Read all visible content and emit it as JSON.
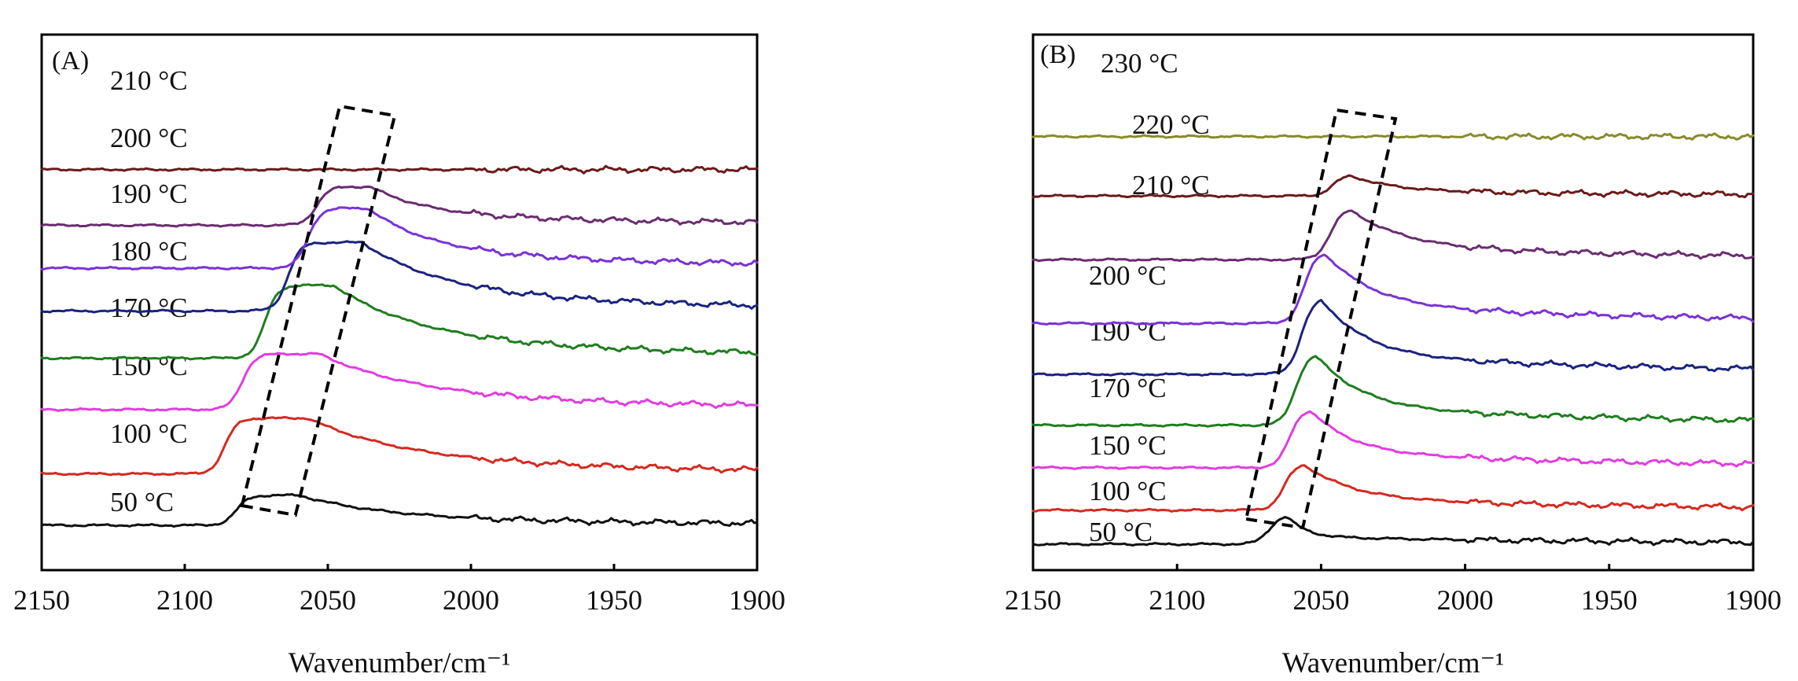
{
  "chart_data": [
    {
      "type": "line",
      "panel": "(A)",
      "xlabel": "Wavenumber/cm⁻¹",
      "ylabel": "",
      "xlim": [
        2150,
        1900
      ],
      "xticks": [
        "2150",
        "2100",
        "2050",
        "2000",
        "1950",
        "1900"
      ],
      "highlight_box_x": [
        2080,
        2028
      ],
      "series": [
        {
          "name": "50 °C",
          "color": "#111111",
          "offset": 0,
          "amp": 7,
          "peak": 2060,
          "width": 30,
          "edge": 2082
        },
        {
          "name": "100 °C",
          "color": "#d42a20",
          "offset": 12,
          "amp": 13,
          "peak": 2057,
          "width": 34,
          "edge": 2086
        },
        {
          "name": "150 °C",
          "color": "#e23ce0",
          "offset": 27,
          "amp": 13,
          "peak": 2053,
          "width": 34,
          "edge": 2080
        },
        {
          "name": "170 °C",
          "color": "#1f7d1f",
          "offset": 39,
          "amp": 17,
          "peak": 2048,
          "width": 30,
          "edge": 2072
        },
        {
          "name": "180 °C",
          "color": "#1a237e",
          "offset": 50,
          "amp": 16,
          "peak": 2038,
          "width": 28,
          "edge": 2064
        },
        {
          "name": "190 °C",
          "color": "#7a32d6",
          "offset": 60,
          "amp": 14,
          "peak": 2036,
          "width": 22,
          "edge": 2057
        },
        {
          "name": "200 °C",
          "color": "#6a2c70",
          "offset": 70,
          "amp": 9,
          "peak": 2035,
          "width": 20,
          "edge": 2054
        },
        {
          "name": "210 °C",
          "color": "#6b1a1a",
          "offset": 83,
          "amp": 0,
          "peak": 2045,
          "width": 40,
          "edge": 2070
        }
      ]
    },
    {
      "type": "line",
      "panel": "(B)",
      "xlabel": "Wavenumber/cm⁻¹",
      "ylabel": "",
      "xlim": [
        2150,
        1900
      ],
      "xticks": [
        "2150",
        "2100",
        "2050",
        "2000",
        "1950",
        "1900"
      ],
      "highlight_box_x": [
        2076,
        2025
      ],
      "series": [
        {
          "name": "50 °C",
          "color": "#111111",
          "offset": 0,
          "amp": 7,
          "peak": 2062,
          "width": 6,
          "edge": 2068
        },
        {
          "name": "100 °C",
          "color": "#d42a20",
          "offset": 8,
          "amp": 11,
          "peak": 2056,
          "width": 16,
          "edge": 2063
        },
        {
          "name": "150 °C",
          "color": "#e23ce0",
          "offset": 18,
          "amp": 14,
          "peak": 2054,
          "width": 14,
          "edge": 2061
        },
        {
          "name": "170 °C",
          "color": "#1f7d1f",
          "offset": 28,
          "amp": 17,
          "peak": 2052,
          "width": 15,
          "edge": 2059
        },
        {
          "name": "190 °C",
          "color": "#1a237e",
          "offset": 40,
          "amp": 18,
          "peak": 2050,
          "width": 15,
          "edge": 2057
        },
        {
          "name": "200 °C",
          "color": "#7a32d6",
          "offset": 52,
          "amp": 17,
          "peak": 2049,
          "width": 16,
          "edge": 2056
        },
        {
          "name": "210 °C",
          "color": "#6a2c70",
          "offset": 67,
          "amp": 12,
          "peak": 2040,
          "width": 18,
          "edge": 2047
        },
        {
          "name": "220 °C",
          "color": "#6b1a1a",
          "offset": 82,
          "amp": 5,
          "peak": 2040,
          "width": 14,
          "edge": 2046
        },
        {
          "name": "230 °C",
          "color": "#8a8a2a",
          "offset": 96,
          "amp": 0,
          "peak": 2040,
          "width": 20,
          "edge": 2050
        }
      ]
    }
  ]
}
